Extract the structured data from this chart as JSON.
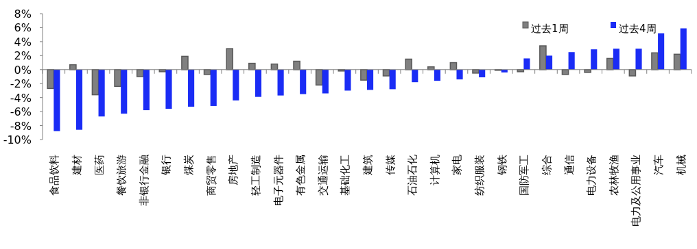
{
  "chart_data": {
    "type": "bar",
    "categories": [
      "食品饮料",
      "建材",
      "医药",
      "餐饮旅游",
      "非银行金融",
      "银行",
      "煤炭",
      "商贸零售",
      "房地产",
      "轻工制造",
      "电子元器件",
      "有色金属",
      "交通运输",
      "基础化工",
      "建筑",
      "传媒",
      "石油石化",
      "计算机",
      "家电",
      "纺织服装",
      "钢铁",
      "国防军工",
      "综合",
      "通信",
      "电力设备",
      "农林牧渔",
      "电力及公用事业",
      "汽车",
      "机械"
    ],
    "series": [
      {
        "name": "过去1周",
        "color": "#808080",
        "values": [
          -2.7,
          0.7,
          -3.6,
          -2.4,
          -1.0,
          -0.3,
          1.9,
          -0.7,
          3.0,
          0.9,
          0.8,
          1.2,
          -2.2,
          -0.2,
          -1.5,
          -0.9,
          1.5,
          0.4,
          1.0,
          -0.5,
          -0.1,
          -0.3,
          3.4,
          -0.7,
          -0.4,
          1.6,
          -0.9,
          2.4,
          2.2
        ]
      },
      {
        "name": "过去4周",
        "color": "#1a2cf5",
        "values": [
          -8.8,
          -8.6,
          -6.7,
          -6.3,
          -5.8,
          -5.6,
          -5.3,
          -5.2,
          -4.4,
          -3.9,
          -3.7,
          -3.5,
          -3.4,
          -3.0,
          -2.9,
          -2.8,
          -1.8,
          -1.6,
          -1.4,
          -1.1,
          -0.4,
          1.6,
          2.0,
          2.5,
          2.9,
          3.0,
          3.0,
          5.2,
          5.9
        ]
      }
    ],
    "ylim": [
      -10,
      8
    ],
    "yticks": [
      {
        "value": -10,
        "label": "-10%"
      },
      {
        "value": -8,
        "label": "-8%"
      },
      {
        "value": -6,
        "label": "-6%"
      },
      {
        "value": -4,
        "label": "-4%"
      },
      {
        "value": -2,
        "label": "-2%"
      },
      {
        "value": 0,
        "label": "0%"
      },
      {
        "value": 2,
        "label": "2%"
      },
      {
        "value": 4,
        "label": "4%"
      },
      {
        "value": 6,
        "label": "6%"
      },
      {
        "value": 8,
        "label": "8%"
      }
    ],
    "legend": "top right"
  }
}
